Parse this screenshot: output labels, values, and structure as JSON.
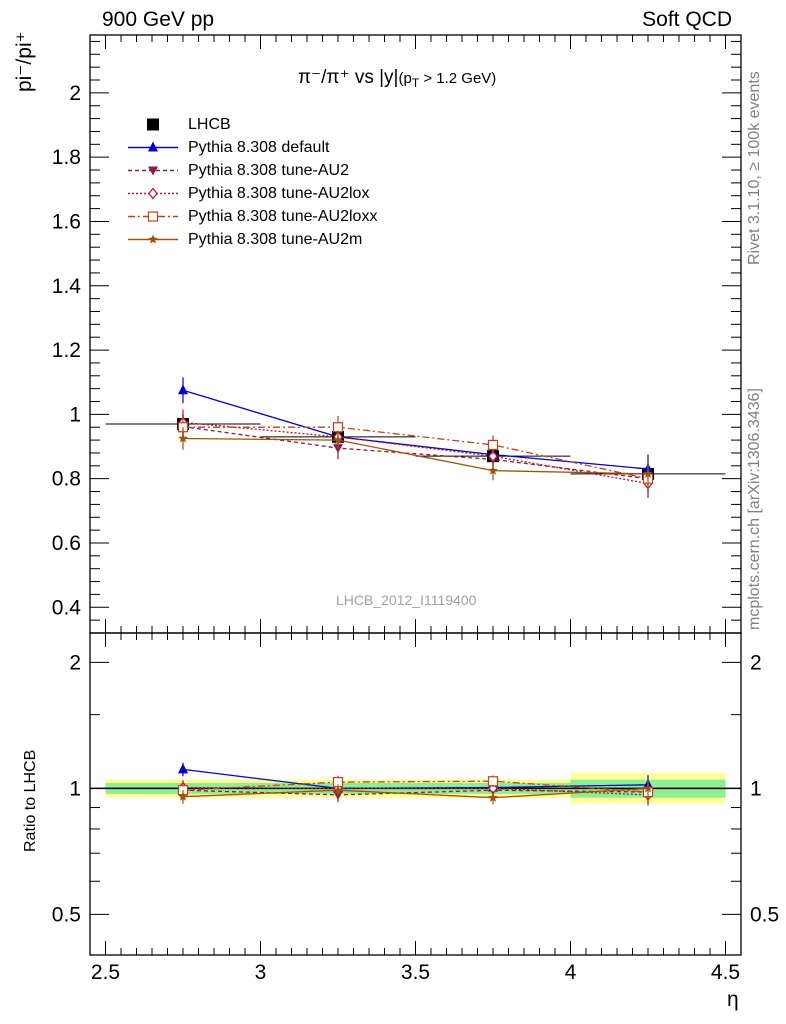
{
  "header": {
    "left": "900 GeV pp",
    "right": "Soft QCD"
  },
  "side_labels": {
    "rivet": "Rivet 3.1.10, ≥ 100k events",
    "mcplots": "mcplots.cern.ch [arXiv:1306.3436]"
  },
  "watermark": "LHCB_2012_I1119400",
  "plot_title": {
    "main": "π⁻/π⁺ vs |y|",
    "cut_pre": "(p",
    "cut_sub": "T",
    "cut_post": " > 1.2 GeV)"
  },
  "colors": {
    "green_band": "#90ee90",
    "yellow_band": "#ffff99"
  },
  "chart_data": [
    {
      "type": "line",
      "panel": "main",
      "ylabel": "pi⁻/pi⁺",
      "xlabel": "",
      "xlim": [
        2.45,
        4.55
      ],
      "ylim": [
        0.32,
        2.18
      ],
      "yticks": [
        "0.4",
        "0.6",
        "0.8",
        "1",
        "1.2",
        "1.4",
        "1.6",
        "1.8",
        "2"
      ],
      "xticks": [
        "2.5",
        "3",
        "3.5",
        "4",
        "4.5"
      ],
      "legend_position": "top-left",
      "x": [
        2.75,
        3.25,
        3.75,
        4.25
      ],
      "series": [
        {
          "name": "LHCB",
          "marker": "square",
          "color": "#000000",
          "dash": "none",
          "values": [
            0.97,
            0.93,
            0.87,
            0.815
          ],
          "errors": [
            0.03,
            0.03,
            0.03,
            0.04
          ]
        },
        {
          "name": "Pythia 8.308 default",
          "marker": "triangle-up",
          "color": "#0000cc",
          "dash": "solid",
          "values": [
            1.075,
            0.93,
            0.875,
            0.83
          ],
          "errors": [
            0.04,
            0.035,
            0.03,
            0.045
          ]
        },
        {
          "name": "Pythia 8.308 tune-AU2",
          "marker": "triangle-down",
          "color": "#8b1a4a",
          "dash": "4,3",
          "values": [
            0.962,
            0.895,
            0.86,
            0.8
          ],
          "errors": [
            0.04,
            0.035,
            0.03,
            0.045
          ]
        },
        {
          "name": "Pythia 8.308 tune-AU2lox",
          "marker": "diamond",
          "color": "#b01828",
          "dash": "2,2",
          "values": [
            0.975,
            0.93,
            0.87,
            0.785
          ],
          "errors": [
            0.04,
            0.035,
            0.03,
            0.045
          ]
        },
        {
          "name": "Pythia 8.308 tune-AU2loxx",
          "marker": "square-open",
          "color": "#c2401c",
          "dash": "7,3,2,3",
          "values": [
            0.96,
            0.96,
            0.905,
            0.8
          ],
          "errors": [
            0.04,
            0.035,
            0.03,
            0.045
          ]
        },
        {
          "name": "Pythia 8.308 tune-AU2m",
          "marker": "star",
          "color": "#a0520c",
          "dash": "solid",
          "values": [
            0.925,
            0.92,
            0.825,
            0.815
          ],
          "errors": [
            0.035,
            0.03,
            0.03,
            0.04
          ]
        }
      ]
    },
    {
      "type": "line",
      "panel": "ratio",
      "ylabel": "Ratio to LHCB",
      "xlabel": "η",
      "xlim": [
        2.45,
        4.55
      ],
      "ylim": [
        0.4,
        2.35
      ],
      "yscale": "log",
      "yticks": [
        "0.5",
        "1",
        "2"
      ],
      "xticks": [
        "2.5",
        "3",
        "3.5",
        "4",
        "4.5"
      ],
      "x": [
        2.75,
        3.25,
        3.75,
        4.25
      ],
      "bands": [
        {
          "x0": 2.5,
          "x1": 4.0,
          "green": [
            0.97,
            1.03
          ],
          "yellow": [
            0.95,
            1.05
          ]
        },
        {
          "x0": 4.0,
          "x1": 4.5,
          "green": [
            0.95,
            1.05
          ],
          "yellow": [
            0.92,
            1.09
          ]
        }
      ],
      "series": [
        {
          "name": "Pythia 8.308 default",
          "values": [
            1.11,
            1.0,
            1.005,
            1.02
          ]
        },
        {
          "name": "Pythia 8.308 tune-AU2",
          "values": [
            0.99,
            0.965,
            0.99,
            0.98
          ]
        },
        {
          "name": "Pythia 8.308 tune-AU2lox",
          "values": [
            1.005,
            1.0,
            1.0,
            0.965
          ]
        },
        {
          "name": "Pythia 8.308 tune-AU2loxx",
          "values": [
            0.99,
            1.035,
            1.04,
            0.98
          ]
        },
        {
          "name": "Pythia 8.308 tune-AU2m",
          "values": [
            0.955,
            0.99,
            0.95,
            1.0
          ]
        }
      ]
    }
  ]
}
